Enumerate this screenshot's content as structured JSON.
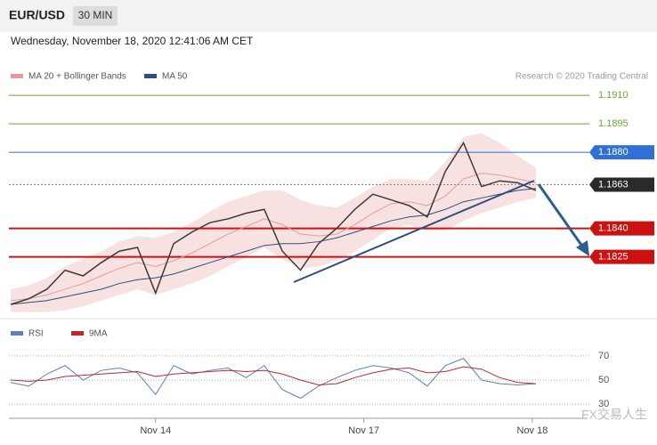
{
  "chart_data": {
    "type": "line",
    "title": "EUR/USD",
    "timeframe": "30 MIN",
    "subtitle": "Wednesday, November 18, 2020 12:41:06 AM CET",
    "source": "Research © 2020 Trading Central",
    "watermark": "FX交易人生",
    "x": [
      0,
      1,
      2,
      3,
      4,
      5,
      6,
      7,
      8,
      9,
      10,
      11,
      12,
      13,
      14,
      15,
      16,
      17,
      18,
      19,
      20,
      21,
      22,
      23,
      24,
      25,
      26,
      27,
      28,
      29
    ],
    "xlim": [
      0,
      29
    ],
    "xticks": [
      {
        "value": 8,
        "label": "Nov 14"
      },
      {
        "value": 19.5,
        "label": "Nov 17"
      },
      {
        "value": 28.8,
        "label": "Nov 18"
      }
    ],
    "ylim": [
      1.1793,
      1.1918
    ],
    "yticks": [
      {
        "value": 1.191,
        "label": "1.1910",
        "color": "#6aa832",
        "style": "text"
      },
      {
        "value": 1.1895,
        "label": "1.1895",
        "color": "#6aa832",
        "style": "text"
      },
      {
        "value": 1.188,
        "label": "1.1880",
        "color": "#2f6fd6",
        "style": "box"
      },
      {
        "value": 1.1863,
        "label": "1.1863",
        "color": "#2a2a2a",
        "style": "box"
      },
      {
        "value": 1.184,
        "label": "1.1840",
        "color": "#cc1111",
        "style": "box"
      },
      {
        "value": 1.1825,
        "label": "1.1825",
        "color": "#cc1111",
        "style": "box"
      }
    ],
    "price": {
      "color": "#3a3a3a",
      "values": [
        1.18,
        1.1803,
        1.1808,
        1.1818,
        1.1815,
        1.1822,
        1.1828,
        1.183,
        1.1806,
        1.1832,
        1.1838,
        1.1843,
        1.1845,
        1.1848,
        1.185,
        1.1828,
        1.1818,
        1.1832,
        1.184,
        1.185,
        1.1858,
        1.1855,
        1.1852,
        1.1846,
        1.187,
        1.1885,
        1.1862,
        1.1865,
        1.1864,
        1.186
      ]
    },
    "series": [
      {
        "name": "MA 20 + Bollinger Bands",
        "color": "#e79a9a",
        "values": [
          1.1802,
          1.1803,
          1.1805,
          1.1808,
          1.1811,
          1.1815,
          1.1819,
          1.1822,
          1.182,
          1.1823,
          1.1827,
          1.1832,
          1.1837,
          1.1841,
          1.1845,
          1.1842,
          1.1837,
          1.1836,
          1.1837,
          1.1842,
          1.1848,
          1.1853,
          1.1854,
          1.1852,
          1.1857,
          1.1866,
          1.1869,
          1.1868,
          1.1866,
          1.1864
        ],
        "upper": [
          1.1808,
          1.181,
          1.1814,
          1.182,
          1.1824,
          1.1828,
          1.1833,
          1.1836,
          1.1835,
          1.1838,
          1.1843,
          1.1849,
          1.1854,
          1.1857,
          1.186,
          1.186,
          1.1855,
          1.1852,
          1.1851,
          1.1856,
          1.1862,
          1.1866,
          1.1866,
          1.1865,
          1.1875,
          1.1888,
          1.189,
          1.1885,
          1.1878,
          1.1872
        ],
        "lower": [
          1.1796,
          1.1796,
          1.1796,
          1.1797,
          1.1799,
          1.1802,
          1.1805,
          1.1808,
          1.1805,
          1.1808,
          1.1811,
          1.1815,
          1.182,
          1.1825,
          1.183,
          1.1824,
          1.1819,
          1.182,
          1.1823,
          1.1828,
          1.1834,
          1.184,
          1.1842,
          1.1839,
          1.1839,
          1.1844,
          1.1848,
          1.1851,
          1.1854,
          1.1856
        ]
      },
      {
        "name": "MA 50",
        "color": "#2b4f81",
        "values": [
          1.18,
          1.1801,
          1.1802,
          1.1804,
          1.1806,
          1.1808,
          1.1811,
          1.1813,
          1.1814,
          1.1816,
          1.1819,
          1.1822,
          1.1825,
          1.1828,
          1.1831,
          1.1832,
          1.1832,
          1.1833,
          1.1835,
          1.1838,
          1.1841,
          1.1844,
          1.1846,
          1.1847,
          1.185,
          1.1854,
          1.1856,
          1.1858,
          1.186,
          1.1861
        ]
      }
    ],
    "rsi": {
      "ylim": [
        22,
        81
      ],
      "yticks": [
        70,
        50,
        30
      ],
      "series": [
        {
          "name": "RSI",
          "color": "#5b7fc0",
          "values": [
            48,
            45,
            55,
            62,
            50,
            58,
            60,
            56,
            38,
            62,
            55,
            58,
            60,
            52,
            62,
            42,
            35,
            45,
            52,
            58,
            62,
            60,
            56,
            45,
            62,
            68,
            50,
            47,
            46,
            47
          ]
        },
        {
          "name": "9MA",
          "color": "#c0282d",
          "values": [
            50,
            49,
            50,
            53,
            54,
            55,
            56,
            57,
            53,
            55,
            56,
            57,
            58,
            57,
            58,
            55,
            50,
            46,
            47,
            52,
            56,
            59,
            60,
            56,
            57,
            61,
            59,
            52,
            48,
            47
          ]
        }
      ]
    }
  }
}
